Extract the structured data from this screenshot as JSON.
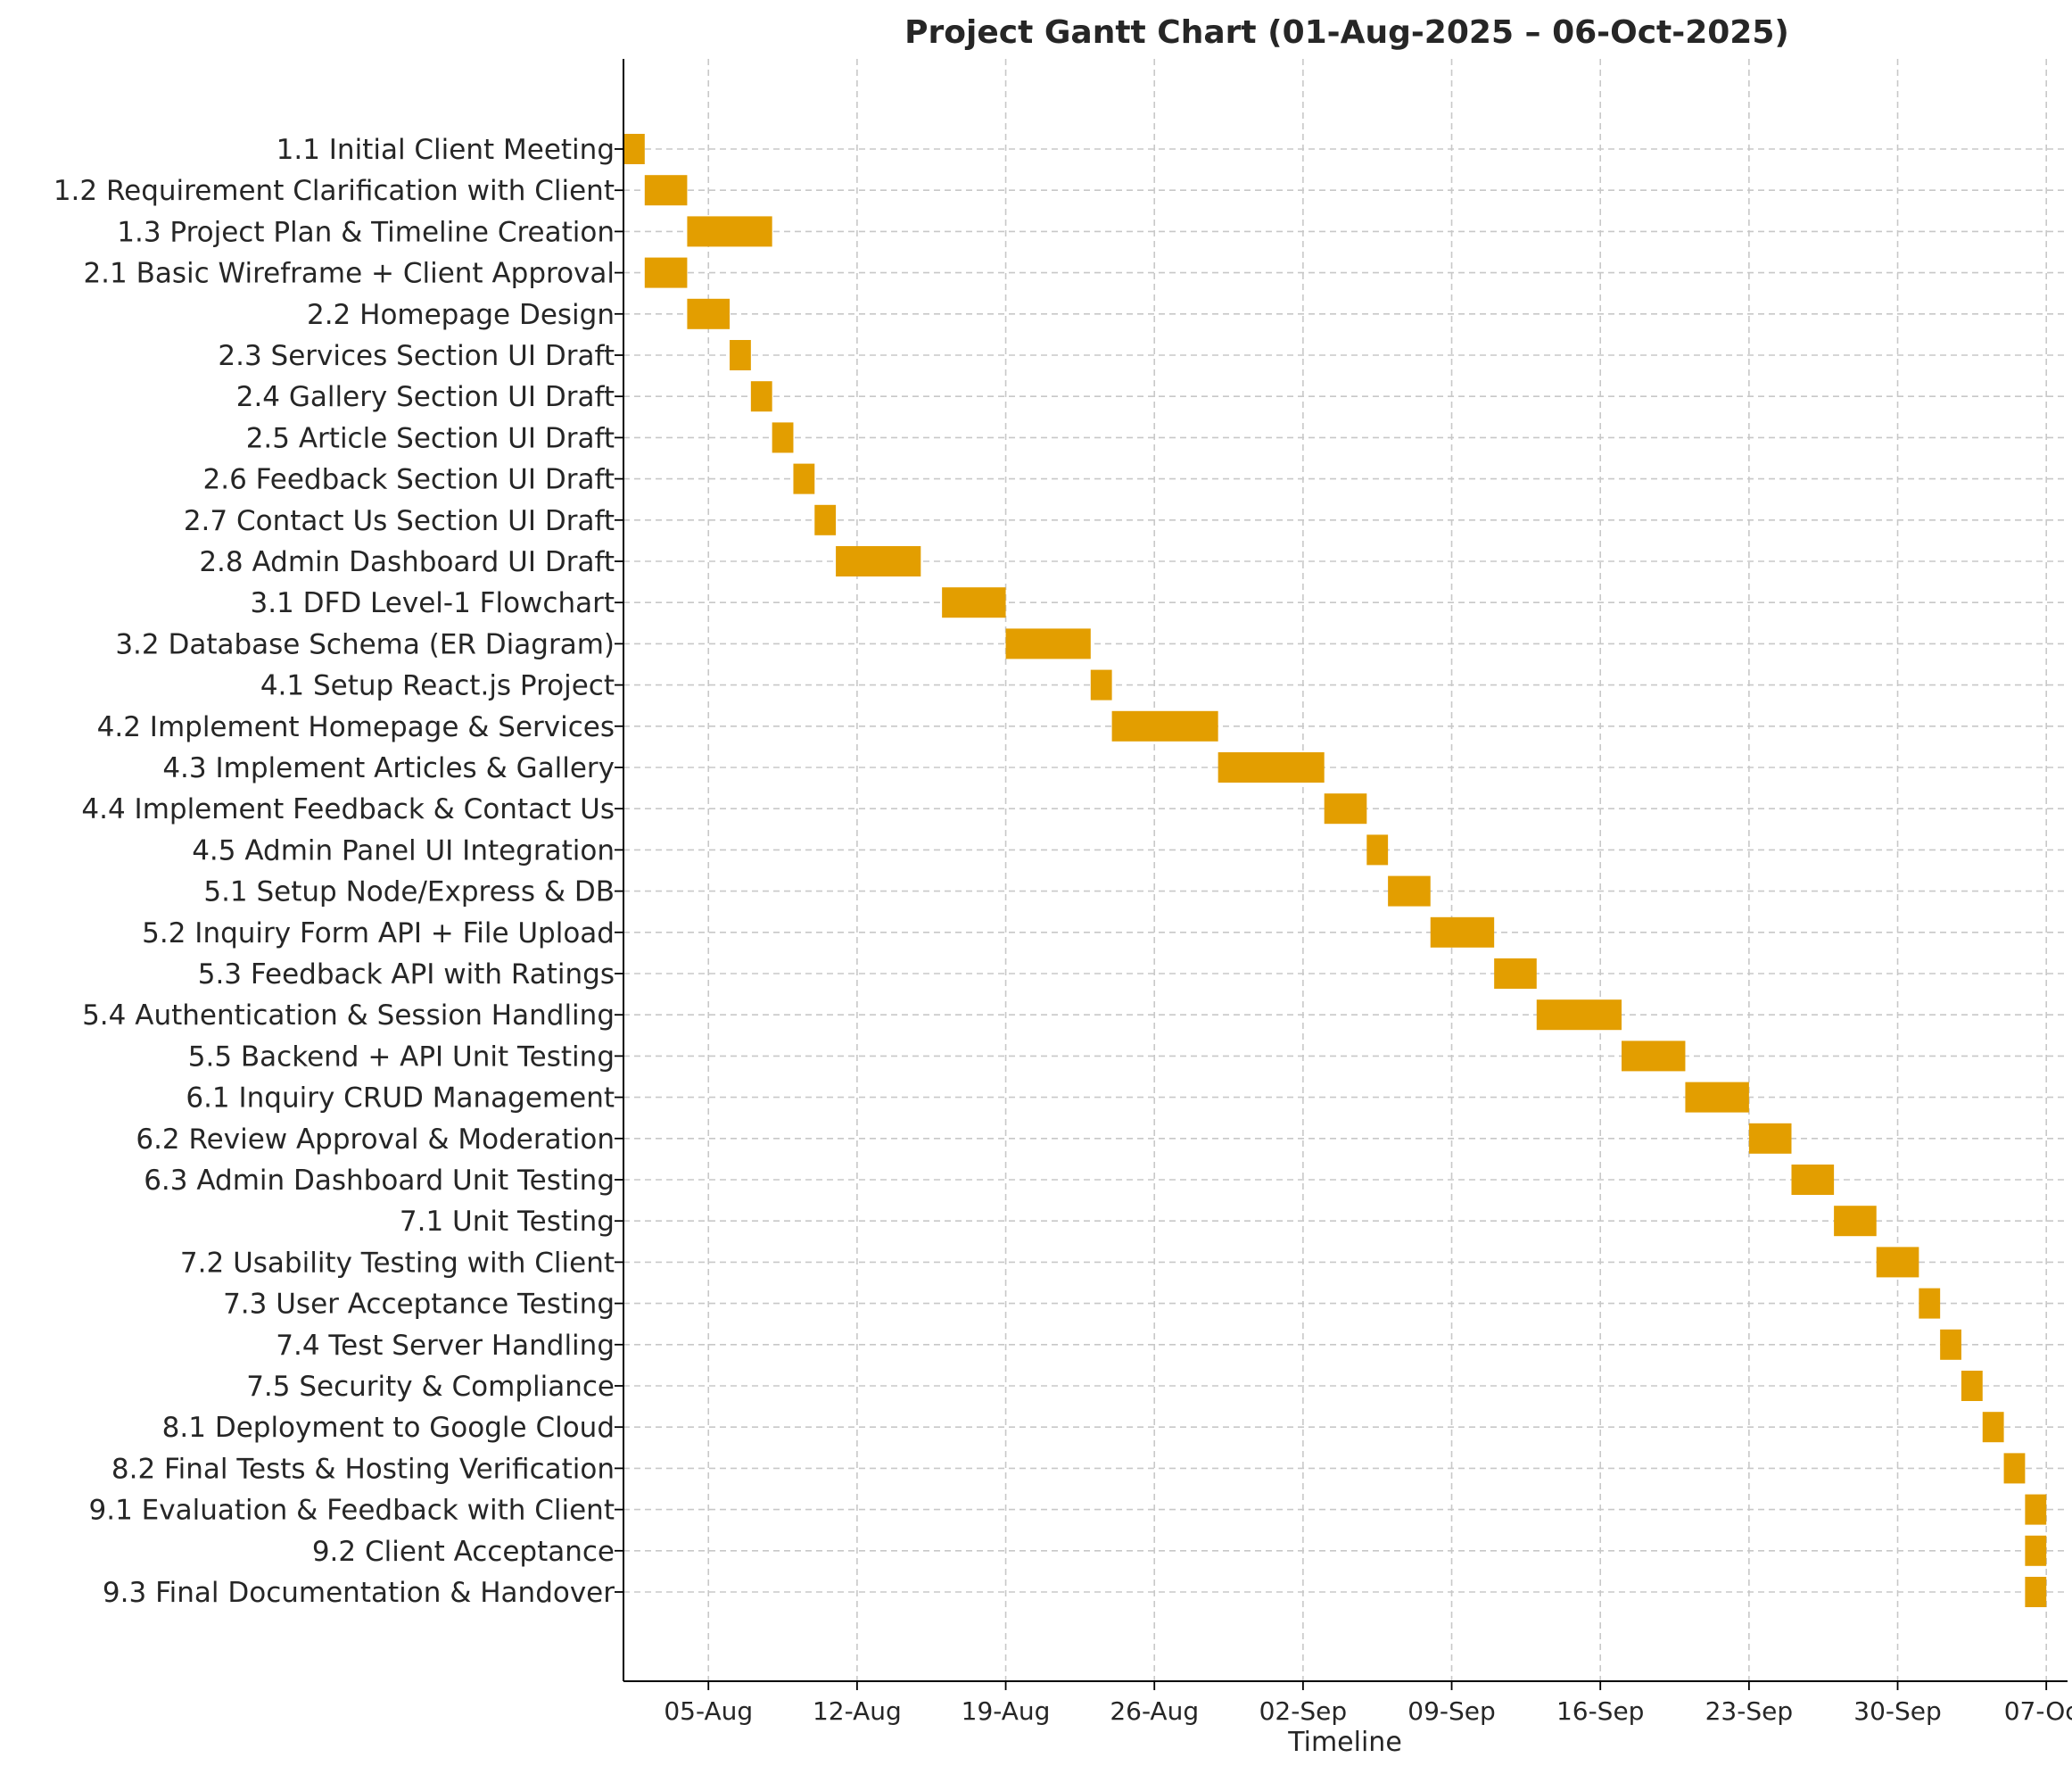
{
  "chart_data": {
    "type": "gantt",
    "title": "Project Gantt Chart (01-Aug-2025 – 06-Oct-2025)",
    "xlabel": "Timeline",
    "ylabel": "",
    "grid": true,
    "bar_color": "#E39E00",
    "x_range": [
      "2025-08-01",
      "2025-10-08"
    ],
    "x_ticks": [
      {
        "date": "2025-08-05",
        "label": "05-Aug"
      },
      {
        "date": "2025-08-12",
        "label": "12-Aug"
      },
      {
        "date": "2025-08-19",
        "label": "19-Aug"
      },
      {
        "date": "2025-08-26",
        "label": "26-Aug"
      },
      {
        "date": "2025-09-02",
        "label": "02-Sep"
      },
      {
        "date": "2025-09-09",
        "label": "09-Sep"
      },
      {
        "date": "2025-09-16",
        "label": "16-Sep"
      },
      {
        "date": "2025-09-23",
        "label": "23-Sep"
      },
      {
        "date": "2025-09-30",
        "label": "30-Sep"
      },
      {
        "date": "2025-10-07",
        "label": "07-Oct"
      }
    ],
    "tasks": [
      {
        "name": "1.1 Initial Client Meeting",
        "start": "2025-08-01",
        "end": "2025-08-02"
      },
      {
        "name": "1.2 Requirement Clarification with Client",
        "start": "2025-08-02",
        "end": "2025-08-04"
      },
      {
        "name": "1.3 Project Plan & Timeline Creation",
        "start": "2025-08-04",
        "end": "2025-08-08"
      },
      {
        "name": "2.1 Basic Wireframe + Client Approval",
        "start": "2025-08-02",
        "end": "2025-08-04"
      },
      {
        "name": "2.2 Homepage Design",
        "start": "2025-08-04",
        "end": "2025-08-06"
      },
      {
        "name": "2.3 Services Section UI Draft",
        "start": "2025-08-06",
        "end": "2025-08-07"
      },
      {
        "name": "2.4 Gallery Section UI Draft",
        "start": "2025-08-07",
        "end": "2025-08-08"
      },
      {
        "name": "2.5 Article Section UI Draft",
        "start": "2025-08-08",
        "end": "2025-08-09"
      },
      {
        "name": "2.6 Feedback Section UI Draft",
        "start": "2025-08-09",
        "end": "2025-08-10"
      },
      {
        "name": "2.7 Contact Us Section UI Draft",
        "start": "2025-08-10",
        "end": "2025-08-11"
      },
      {
        "name": "2.8 Admin Dashboard UI Draft",
        "start": "2025-08-11",
        "end": "2025-08-15"
      },
      {
        "name": "3.1 DFD Level-1 Flowchart",
        "start": "2025-08-16",
        "end": "2025-08-19"
      },
      {
        "name": "3.2 Database Schema (ER Diagram)",
        "start": "2025-08-19",
        "end": "2025-08-23"
      },
      {
        "name": "4.1 Setup React.js Project",
        "start": "2025-08-23",
        "end": "2025-08-24"
      },
      {
        "name": "4.2 Implement Homepage & Services",
        "start": "2025-08-24",
        "end": "2025-08-29"
      },
      {
        "name": "4.3 Implement Articles & Gallery",
        "start": "2025-08-29",
        "end": "2025-09-03"
      },
      {
        "name": "4.4 Implement Feedback & Contact Us",
        "start": "2025-09-03",
        "end": "2025-09-05"
      },
      {
        "name": "4.5 Admin Panel UI Integration",
        "start": "2025-09-05",
        "end": "2025-09-06"
      },
      {
        "name": "5.1 Setup Node/Express & DB",
        "start": "2025-09-06",
        "end": "2025-09-08"
      },
      {
        "name": "5.2 Inquiry Form API + File Upload",
        "start": "2025-09-08",
        "end": "2025-09-11"
      },
      {
        "name": "5.3 Feedback API with Ratings",
        "start": "2025-09-11",
        "end": "2025-09-13"
      },
      {
        "name": "5.4 Authentication & Session Handling",
        "start": "2025-09-13",
        "end": "2025-09-17"
      },
      {
        "name": "5.5 Backend + API Unit Testing",
        "start": "2025-09-17",
        "end": "2025-09-20"
      },
      {
        "name": "6.1 Inquiry CRUD Management",
        "start": "2025-09-20",
        "end": "2025-09-23"
      },
      {
        "name": "6.2 Review Approval & Moderation",
        "start": "2025-09-23",
        "end": "2025-09-25"
      },
      {
        "name": "6.3 Admin Dashboard Unit Testing",
        "start": "2025-09-25",
        "end": "2025-09-27"
      },
      {
        "name": "7.1 Unit Testing",
        "start": "2025-09-27",
        "end": "2025-09-29"
      },
      {
        "name": "7.2 Usability Testing with Client",
        "start": "2025-09-29",
        "end": "2025-10-01"
      },
      {
        "name": "7.3 User Acceptance Testing",
        "start": "2025-10-01",
        "end": "2025-10-02"
      },
      {
        "name": "7.4 Test Server Handling",
        "start": "2025-10-02",
        "end": "2025-10-03"
      },
      {
        "name": "7.5 Security & Compliance",
        "start": "2025-10-03",
        "end": "2025-10-04"
      },
      {
        "name": "8.1 Deployment to Google Cloud",
        "start": "2025-10-04",
        "end": "2025-10-05"
      },
      {
        "name": "8.2 Final Tests & Hosting Verification",
        "start": "2025-10-05",
        "end": "2025-10-06"
      },
      {
        "name": "9.1 Evaluation & Feedback with Client",
        "start": "2025-10-06",
        "end": "2025-10-07"
      },
      {
        "name": "9.2 Client Acceptance",
        "start": "2025-10-06",
        "end": "2025-10-07"
      },
      {
        "name": "9.3 Final Documentation & Handover",
        "start": "2025-10-06",
        "end": "2025-10-07"
      }
    ]
  }
}
